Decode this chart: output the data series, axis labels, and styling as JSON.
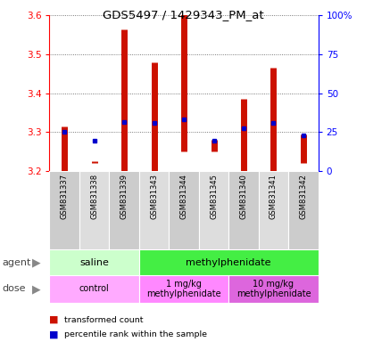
{
  "title": "GDS5497 / 1429343_PM_at",
  "samples": [
    "GSM831337",
    "GSM831338",
    "GSM831339",
    "GSM831343",
    "GSM831344",
    "GSM831345",
    "GSM831340",
    "GSM831341",
    "GSM831342"
  ],
  "bar_low": [
    3.2,
    3.22,
    3.2,
    3.2,
    3.25,
    3.25,
    3.2,
    3.2,
    3.22
  ],
  "bar_high": [
    3.315,
    3.225,
    3.565,
    3.48,
    3.605,
    3.28,
    3.385,
    3.465,
    3.293
  ],
  "blue_dot": [
    3.3,
    3.278,
    3.325,
    3.323,
    3.333,
    3.278,
    3.31,
    3.323,
    3.292
  ],
  "ylim": [
    3.2,
    3.6
  ],
  "yticks": [
    3.2,
    3.3,
    3.4,
    3.5,
    3.6
  ],
  "y2ticks": [
    0,
    25,
    50,
    75,
    100
  ],
  "y2labels": [
    "0",
    "25",
    "50",
    "75",
    "100%"
  ],
  "bar_color": "#cc1100",
  "dot_color": "#0000cc",
  "agent_groups": [
    {
      "label": "saline",
      "start": 0,
      "end": 3,
      "color": "#ccffcc"
    },
    {
      "label": "methylphenidate",
      "start": 3,
      "end": 9,
      "color": "#44ee44"
    }
  ],
  "dose_groups": [
    {
      "label": "control",
      "start": 0,
      "end": 3,
      "color": "#ffaaff"
    },
    {
      "label": "1 mg/kg\nmethylphenidate",
      "start": 3,
      "end": 6,
      "color": "#ff88ff"
    },
    {
      "label": "10 mg/kg\nmethylphenidate",
      "start": 6,
      "end": 9,
      "color": "#dd66dd"
    }
  ],
  "legend_red": "transformed count",
  "legend_blue": "percentile rank within the sample",
  "plot_bg": "#ffffff",
  "cell_bg": "#cccccc",
  "cell_border": "#aaaaaa"
}
